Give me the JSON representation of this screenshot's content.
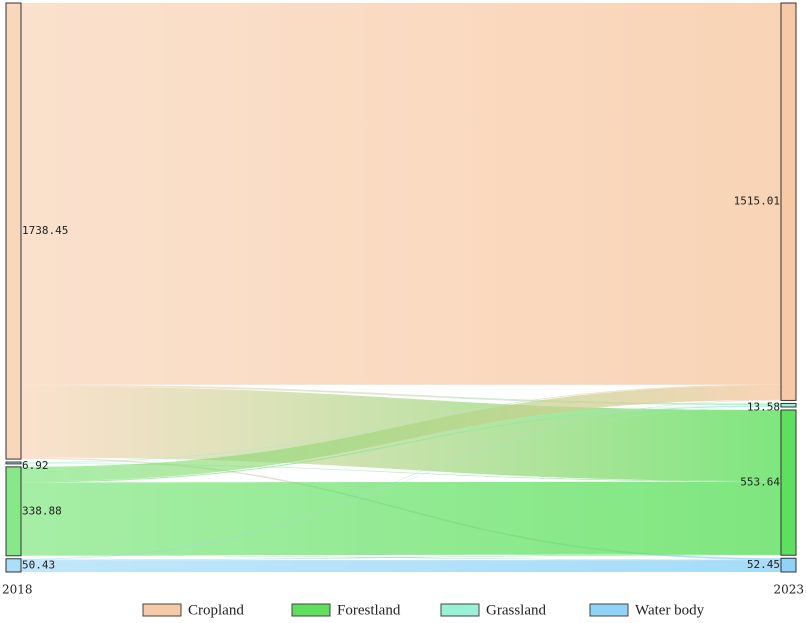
{
  "chart_data": {
    "type": "sankey",
    "categories": [
      {
        "name": "Cropland",
        "color": "#f7c9a4"
      },
      {
        "name": "Forestland",
        "color": "#5ee05e"
      },
      {
        "name": "Grassland",
        "color": "#98f2d6"
      },
      {
        "name": "Water body",
        "color": "#8fd3f7"
      }
    ],
    "stages": [
      {
        "label": "2018",
        "nodes": [
          {
            "category": 0,
            "value": 1738.45
          },
          {
            "category": 2,
            "value": 6.92
          },
          {
            "category": 1,
            "value": 338.88
          },
          {
            "category": 3,
            "value": 50.43
          }
        ]
      },
      {
        "label": "2023",
        "nodes": [
          {
            "category": 0,
            "value": 1515.01
          },
          {
            "category": 2,
            "value": 13.58
          },
          {
            "category": 1,
            "value": 553.64
          },
          {
            "category": 3,
            "value": 52.45
          }
        ]
      }
    ],
    "links": [
      {
        "source": 0,
        "target": 0,
        "value": 1455
      },
      {
        "source": 0,
        "target": 1,
        "value": 7
      },
      {
        "source": 0,
        "target": 2,
        "value": 271
      },
      {
        "source": 0,
        "target": 3,
        "value": 5.45
      },
      {
        "source": 1,
        "target": 0,
        "value": 3
      },
      {
        "source": 1,
        "target": 1,
        "value": 1.58
      },
      {
        "source": 1,
        "target": 2,
        "value": 2.34
      },
      {
        "source": 2,
        "target": 0,
        "value": 55
      },
      {
        "source": 2,
        "target": 1,
        "value": 4
      },
      {
        "source": 2,
        "target": 2,
        "value": 278
      },
      {
        "source": 2,
        "target": 3,
        "value": 1.88
      },
      {
        "source": 3,
        "target": 0,
        "value": 2.01
      },
      {
        "source": 3,
        "target": 1,
        "value": 1
      },
      {
        "source": 3,
        "target": 2,
        "value": 2.3
      },
      {
        "source": 3,
        "target": 3,
        "value": 45.12
      }
    ]
  }
}
